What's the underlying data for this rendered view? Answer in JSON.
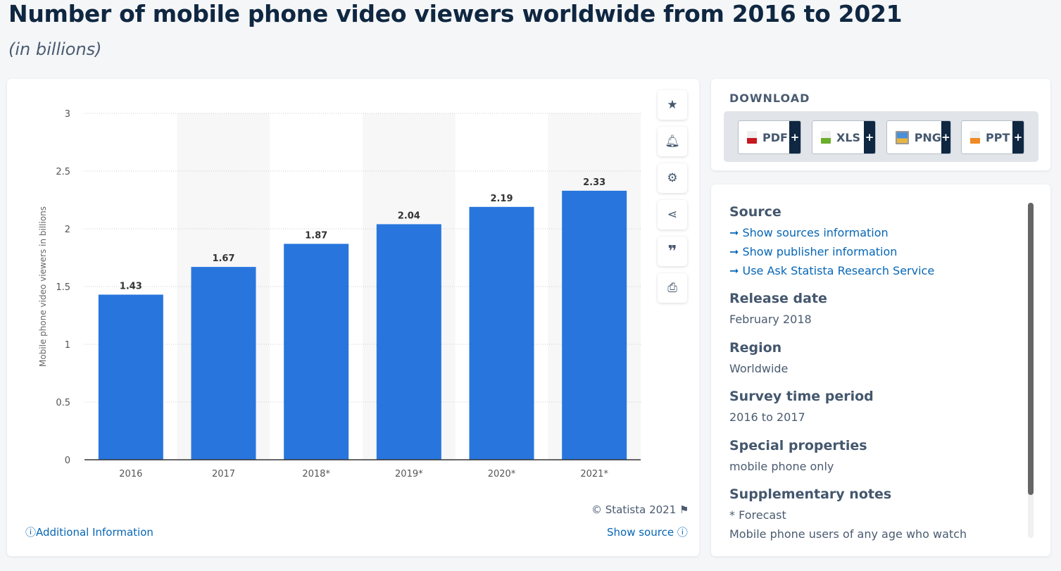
{
  "title": "Number of mobile phone video viewers worldwide from 2016 to 2021",
  "subtitle": "(in billions)",
  "chart_data": {
    "type": "bar",
    "categories": [
      "2016",
      "2017",
      "2018*",
      "2019*",
      "2020*",
      "2021*"
    ],
    "values": [
      1.43,
      1.67,
      1.87,
      2.04,
      2.19,
      2.33
    ],
    "ylabel": "Mobile phone video viewers in billions",
    "ylim": [
      0,
      3
    ],
    "yticks": [
      "0",
      "0.5",
      "1",
      "1.5",
      "2",
      "2.5",
      "3"
    ],
    "grid": true,
    "bar_color": "#2876dd"
  },
  "chart_footer": {
    "copyright": "© Statista 2021",
    "additional": "Additional Information",
    "show_source": "Show source"
  },
  "tools": [
    "star-icon",
    "bell-icon",
    "gear-icon",
    "share-icon",
    "quote-icon",
    "print-icon"
  ],
  "download": {
    "heading": "DOWNLOAD",
    "buttons": [
      {
        "label": "PDF",
        "plus": "+"
      },
      {
        "label": "XLS",
        "plus": "+"
      },
      {
        "label": "PNG",
        "plus": "+"
      },
      {
        "label": "PPT",
        "plus": "+"
      }
    ]
  },
  "info": {
    "source_h": "Source",
    "links": [
      "Show sources information",
      "Show publisher information",
      "Use Ask Statista Research Service"
    ],
    "release_h": "Release date",
    "release": "February 2018",
    "region_h": "Region",
    "region": "Worldwide",
    "period_h": "Survey time period",
    "period": "2016 to 2017",
    "special_h": "Special properties",
    "special": "mobile phone only",
    "notes_h": "Supplementary notes",
    "notes1": "* Forecast",
    "notes2": "Mobile phone users of any age who watch"
  }
}
